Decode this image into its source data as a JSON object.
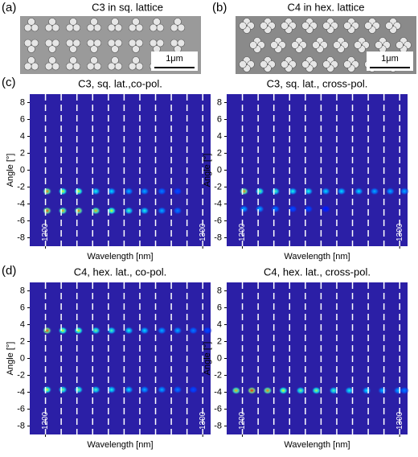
{
  "figure": {
    "panel_labels": [
      "(a)",
      "(b)",
      "(c)",
      "(d)"
    ],
    "sem_images": [
      {
        "title": "C3 in sq. lattice",
        "scale_bar": "1μm"
      },
      {
        "title": "C4 in hex. lattice",
        "scale_bar": "1μm"
      }
    ]
  },
  "chart_data": [
    {
      "type": "heatmap",
      "title": "C3, sq. lat.,co-pol.",
      "x_label": "Wavelength [nm]",
      "y_label": "Angle [°]",
      "xlim": [
        1190,
        1305
      ],
      "ylim": [
        -9,
        9
      ],
      "xticks": [
        1200,
        1300
      ],
      "yticks": [
        8,
        6,
        4,
        2,
        0,
        -2,
        -4,
        -6,
        -8
      ],
      "guide_lines": [
        1200,
        1210,
        1220,
        1230,
        1240,
        1250,
        1260,
        1270,
        1280,
        1290,
        1300
      ],
      "spots": [
        {
          "angle": -2.5,
          "wavelengths": [
            1201,
            1211,
            1221,
            1232,
            1242,
            1253,
            1263,
            1274,
            1284
          ],
          "intensity": [
            0.75,
            0.6,
            0.6,
            0.4,
            0.35,
            0.3,
            0.3,
            0.25,
            0.2
          ]
        },
        {
          "angle": -4.8,
          "wavelengths": [
            1201,
            1211,
            1221,
            1232,
            1242,
            1253,
            1263,
            1274,
            1284
          ],
          "intensity": [
            0.8,
            0.7,
            0.75,
            0.7,
            0.6,
            0.45,
            0.4,
            0.3,
            0.25
          ]
        }
      ]
    },
    {
      "type": "heatmap",
      "title": "C3, sq. lat., cross-pol.",
      "x_label": "Wavelength [nm]",
      "y_label": "Angle [°]",
      "xlim": [
        1190,
        1305
      ],
      "ylim": [
        -9,
        9
      ],
      "xticks": [
        1200,
        1300
      ],
      "yticks": [
        8,
        6,
        4,
        2,
        0,
        -2,
        -4,
        -6,
        -8
      ],
      "guide_lines": [
        1200,
        1210,
        1220,
        1230,
        1240,
        1250,
        1260,
        1270,
        1280,
        1290,
        1300
      ],
      "spots": [
        {
          "angle": -2.5,
          "wavelengths": [
            1201,
            1211,
            1221,
            1232,
            1242,
            1253,
            1263,
            1274,
            1284,
            1294,
            1303
          ],
          "intensity": [
            0.75,
            0.5,
            0.45,
            0.4,
            0.4,
            0.35,
            0.35,
            0.35,
            0.3,
            0.3,
            0.3
          ]
        },
        {
          "angle": -4.6,
          "wavelengths": [
            1201,
            1211,
            1221,
            1232,
            1242,
            1253
          ],
          "intensity": [
            0.3,
            0.3,
            0.25,
            0.2,
            0.2,
            0.15
          ]
        }
      ]
    },
    {
      "type": "heatmap",
      "title": "C4, hex. lat., co-pol.",
      "x_label": "Wavelength [nm]",
      "y_label": "Angle [°]",
      "xlim": [
        1190,
        1305
      ],
      "ylim": [
        -9,
        9
      ],
      "xticks": [
        1200,
        1300
      ],
      "yticks": [
        8,
        6,
        4,
        2,
        0,
        -2,
        -4,
        -6,
        -8
      ],
      "guide_lines": [
        1200,
        1210,
        1220,
        1230,
        1240,
        1250,
        1260,
        1270,
        1280,
        1290,
        1300
      ],
      "spots": [
        {
          "angle": 3.3,
          "wavelengths": [
            1201,
            1211,
            1221,
            1232,
            1242,
            1253,
            1263,
            1274,
            1284,
            1294,
            1303
          ],
          "intensity": [
            0.8,
            0.6,
            0.6,
            0.5,
            0.45,
            0.4,
            0.35,
            0.3,
            0.3,
            0.25,
            0.2
          ]
        },
        {
          "angle": -3.7,
          "wavelengths": [
            1201,
            1211,
            1221,
            1232,
            1242,
            1253,
            1263,
            1274,
            1284,
            1294
          ],
          "intensity": [
            0.6,
            0.5,
            0.5,
            0.45,
            0.4,
            0.35,
            0.3,
            0.3,
            0.25,
            0.2
          ]
        }
      ]
    },
    {
      "type": "heatmap",
      "title": "C4, hex. lat., cross-pol.",
      "x_label": "Wavelength [nm]",
      "y_label": "Angle [°]",
      "xlim": [
        1190,
        1305
      ],
      "ylim": [
        -9,
        9
      ],
      "xticks": [
        1200,
        1300
      ],
      "yticks": [
        8,
        6,
        4,
        2,
        0,
        -2,
        -4,
        -6,
        -8
      ],
      "guide_lines": [
        1200,
        1210,
        1220,
        1230,
        1240,
        1250,
        1260,
        1270,
        1280,
        1290,
        1300
      ],
      "spots": [
        {
          "angle": -3.8,
          "wavelengths": [
            1196,
            1206,
            1216,
            1226,
            1237,
            1247,
            1258,
            1268,
            1279,
            1289,
            1299,
            1303
          ],
          "intensity": [
            0.7,
            0.85,
            0.75,
            0.6,
            0.5,
            0.55,
            0.45,
            0.4,
            0.35,
            0.3,
            0.3,
            0.25
          ]
        }
      ]
    }
  ]
}
